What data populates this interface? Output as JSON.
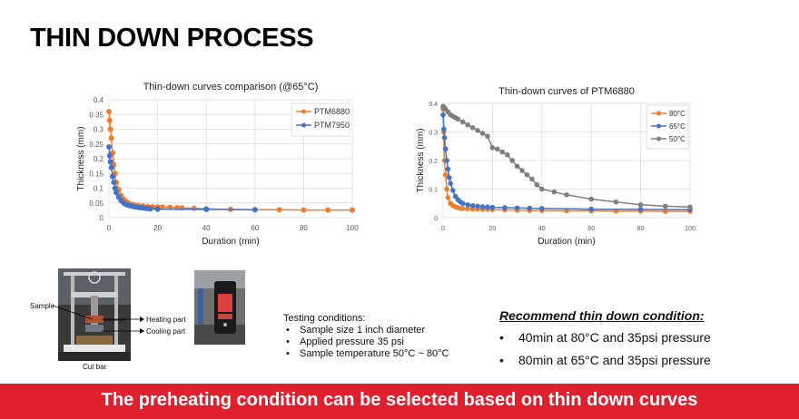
{
  "slide": {
    "title": "THIN DOWN PROCESS",
    "testing_header": "Testing conditions:",
    "testing_items": [
      "Sample size 1 inch diameter",
      "Applied pressure 35 psi",
      "Sample temperature 50°C ~ 80°C"
    ],
    "recommend_header": "Recommend thin down condition:",
    "recommend_items": [
      "40min at 80°C and 35psi pressure",
      "80min at 65°C and 35psi pressure"
    ],
    "banner": "The preheating condition can be selected based on thin down curves",
    "photo_labels": {
      "sample": "Sample",
      "heating": "Heating part",
      "cooling": "Cooling part",
      "cutbar": "Cut bar"
    }
  },
  "chart_data": [
    {
      "type": "scatter",
      "title": "Thin-down curves comparison (@65°C)",
      "xlabel": "Duration (min)",
      "ylabel": "Thickness (mm)",
      "xlim": [
        0,
        100
      ],
      "ylim": [
        0,
        0.4
      ],
      "xticks": [
        0,
        20,
        40,
        60,
        80,
        100
      ],
      "yticks": [
        0,
        0.05,
        0.1,
        0.15,
        0.2,
        0.25,
        0.3,
        0.35,
        0.4
      ],
      "ytick_labels": [
        "0",
        "0.05",
        "0.1",
        "0.15",
        "0.2",
        "0.25",
        "0.3",
        "0.35",
        "0.4"
      ],
      "grid": true,
      "legend_position": "top-right",
      "series": [
        {
          "name": "PTM6880",
          "color": "#ed7d31",
          "x": [
            0,
            0.3,
            0.6,
            1,
            1.5,
            2,
            2.5,
            3,
            4,
            5,
            6,
            7,
            8,
            10,
            12,
            14,
            16,
            18,
            20,
            22,
            25,
            28,
            30,
            35,
            40,
            50,
            60,
            70,
            80,
            90,
            100
          ],
          "y": [
            0.36,
            0.33,
            0.3,
            0.27,
            0.22,
            0.18,
            0.15,
            0.12,
            0.095,
            0.075,
            0.063,
            0.055,
            0.05,
            0.045,
            0.042,
            0.04,
            0.038,
            0.037,
            0.036,
            0.036,
            0.035,
            0.034,
            0.033,
            0.032,
            0.03,
            0.028,
            0.027,
            0.027,
            0.026,
            0.026,
            0.026
          ]
        },
        {
          "name": "PTM7950",
          "color": "#4472c4",
          "x": [
            0,
            0.3,
            0.6,
            1,
            1.5,
            2,
            2.5,
            3,
            4,
            5,
            6,
            7,
            8,
            9,
            10,
            11,
            12,
            13,
            14,
            15,
            16,
            17,
            20,
            40,
            60
          ],
          "y": [
            0.24,
            0.21,
            0.19,
            0.17,
            0.14,
            0.12,
            0.1,
            0.085,
            0.07,
            0.058,
            0.05,
            0.045,
            0.042,
            0.04,
            0.038,
            0.036,
            0.035,
            0.034,
            0.033,
            0.032,
            0.031,
            0.03,
            0.029,
            0.028,
            0.027
          ]
        }
      ]
    },
    {
      "type": "line",
      "title": "Thin-down curves of PTM6880",
      "xlabel": "Duration (min)",
      "ylabel": "Thickness (mm)",
      "xlim": [
        0,
        100
      ],
      "ylim": [
        0,
        0.4
      ],
      "xticks": [
        0,
        20,
        40,
        60,
        80,
        100
      ],
      "yticks": [
        0,
        0.1,
        0.2,
        0.3,
        0.4
      ],
      "ytick_labels": [
        "0",
        "0.1",
        "0.2",
        "0.3",
        "0.4"
      ],
      "grid": true,
      "legend_position": "top-right",
      "series": [
        {
          "name": "80°C",
          "color": "#ed7d31",
          "x": [
            0,
            0.3,
            0.6,
            1,
            1.5,
            2,
            3,
            4,
            5,
            6,
            7,
            8,
            10,
            12,
            14,
            16,
            18,
            20,
            25,
            30,
            35,
            40,
            50,
            60,
            70,
            80,
            90,
            100
          ],
          "y": [
            0.38,
            0.3,
            0.2,
            0.15,
            0.1,
            0.07,
            0.05,
            0.042,
            0.038,
            0.035,
            0.033,
            0.032,
            0.031,
            0.03,
            0.03,
            0.029,
            0.029,
            0.028,
            0.027,
            0.026,
            0.025,
            0.025,
            0.024,
            0.024,
            0.023,
            0.023,
            0.022,
            0.022
          ]
        },
        {
          "name": "65°C",
          "color": "#4472c4",
          "x": [
            0,
            0.3,
            0.6,
            1,
            1.5,
            2,
            2.5,
            3,
            4,
            5,
            6,
            7,
            8,
            10,
            12,
            14,
            16,
            18,
            20,
            25,
            30,
            35,
            40,
            60,
            80,
            100
          ],
          "y": [
            0.36,
            0.31,
            0.28,
            0.24,
            0.2,
            0.17,
            0.14,
            0.12,
            0.095,
            0.075,
            0.063,
            0.055,
            0.05,
            0.045,
            0.042,
            0.04,
            0.038,
            0.037,
            0.036,
            0.035,
            0.034,
            0.033,
            0.032,
            0.03,
            0.029,
            0.028
          ]
        },
        {
          "name": "50°C",
          "color": "#7f7f7f",
          "x": [
            0,
            0.5,
            1,
            2,
            3,
            4,
            5,
            6,
            8,
            10,
            12,
            14,
            16,
            18,
            20,
            22,
            24,
            26,
            28,
            30,
            32,
            34,
            36,
            38,
            40,
            45,
            50,
            60,
            70,
            80,
            90,
            100
          ],
          "y": [
            0.39,
            0.385,
            0.38,
            0.37,
            0.36,
            0.355,
            0.35,
            0.345,
            0.335,
            0.325,
            0.315,
            0.305,
            0.295,
            0.285,
            0.245,
            0.24,
            0.23,
            0.22,
            0.2,
            0.18,
            0.165,
            0.15,
            0.135,
            0.115,
            0.1,
            0.09,
            0.08,
            0.065,
            0.055,
            0.045,
            0.04,
            0.037
          ]
        }
      ]
    }
  ]
}
